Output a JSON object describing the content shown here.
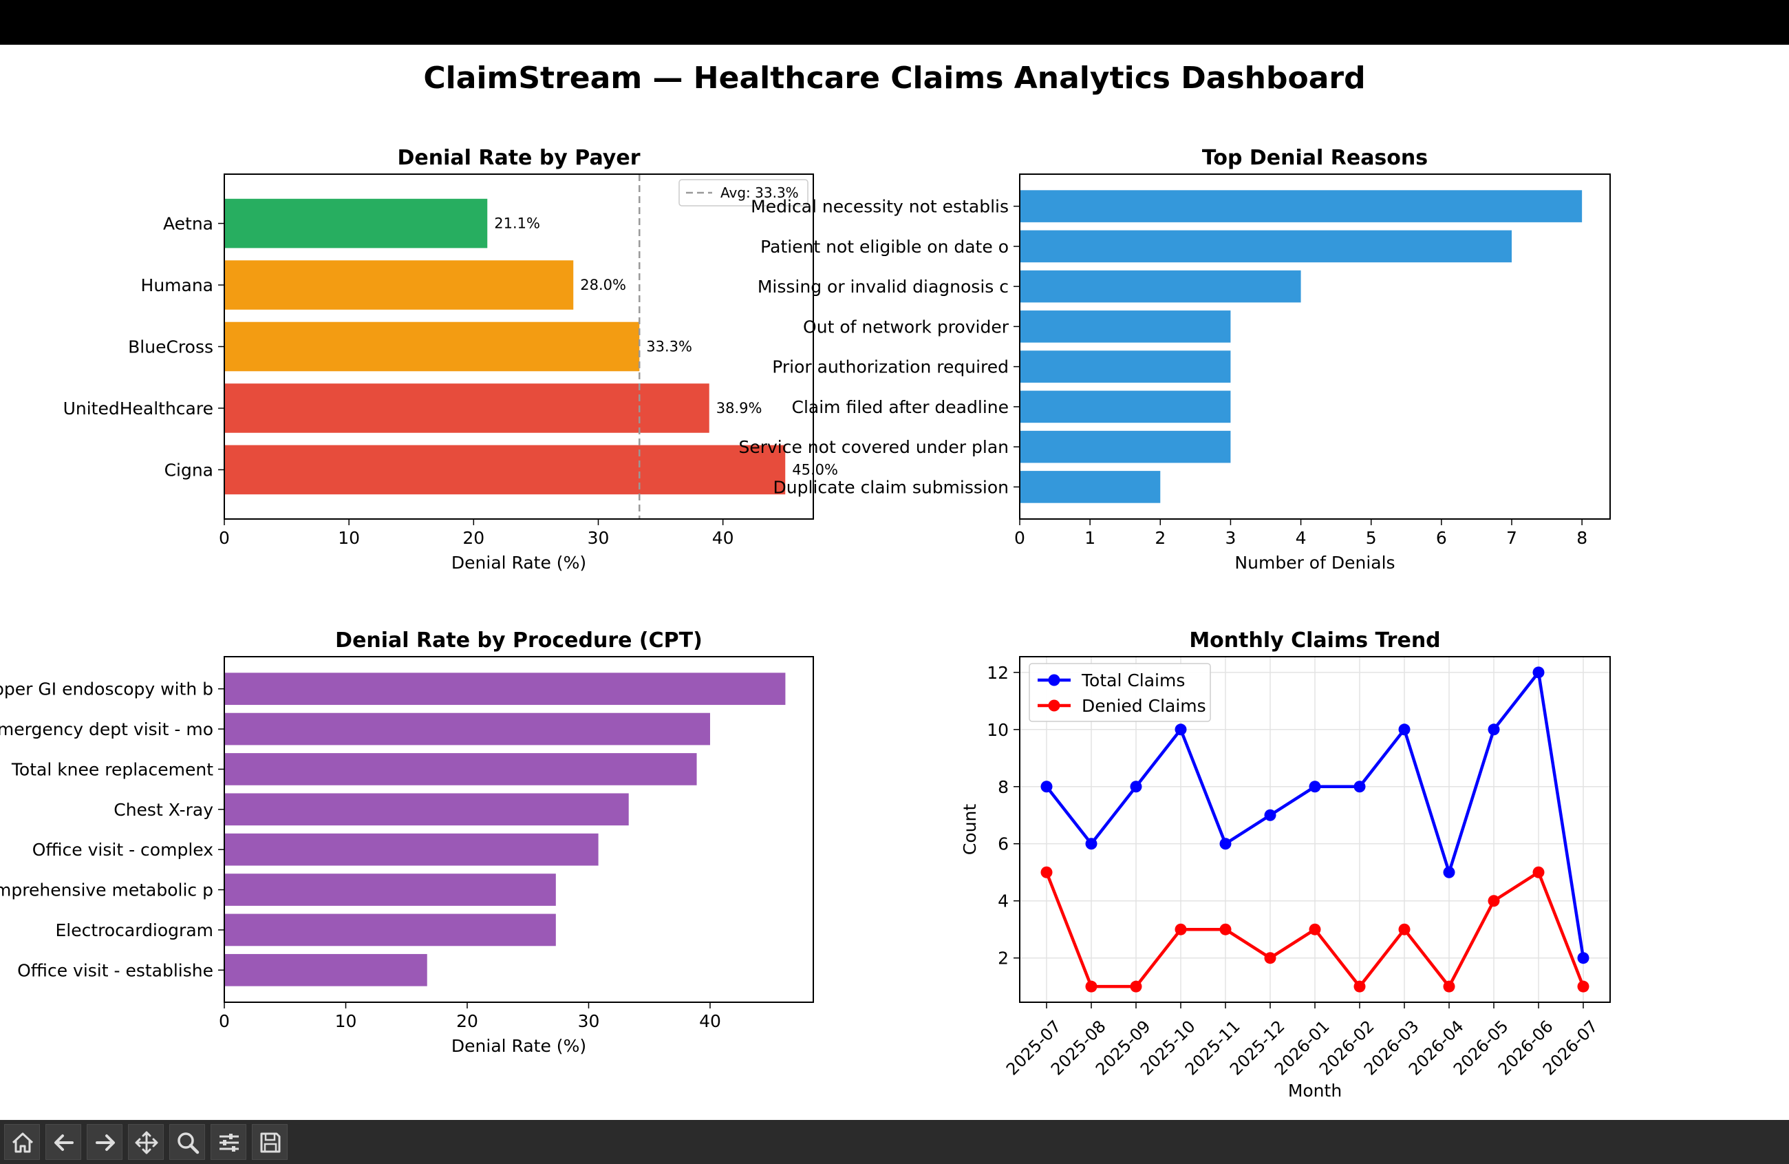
{
  "suptitle": "ClaimStream — Healthcare Claims Analytics Dashboard",
  "chart_data": [
    {
      "type": "bar",
      "orientation": "horizontal",
      "title": "Denial Rate by Payer",
      "xlabel": "Denial Rate (%)",
      "ylabel": "",
      "categories": [
        "Aetna",
        "Humana",
        "BlueCross",
        "UnitedHealthcare",
        "Cigna"
      ],
      "values": [
        21.1,
        28.0,
        33.3,
        38.9,
        45.0
      ],
      "value_labels": [
        "21.1%",
        "28.0%",
        "33.3%",
        "38.9%",
        "45.0%"
      ],
      "colors": [
        "#27ae60",
        "#f39c12",
        "#f39c12",
        "#e74c3c",
        "#e74c3c"
      ],
      "xlim": [
        0,
        47.25
      ],
      "xticks": [
        0,
        10,
        20,
        30,
        40
      ],
      "reference_line": {
        "value": 33.3,
        "label": "Avg: 33.3%",
        "color": "#999999"
      },
      "legend": "top-right"
    },
    {
      "type": "bar",
      "orientation": "horizontal",
      "title": "Top Denial Reasons",
      "xlabel": "Number of Denials",
      "ylabel": "",
      "categories": [
        "Medical necessity not establis",
        "Patient not eligible on date o",
        "Missing or invalid diagnosis c",
        "Out of network provider",
        "Prior authorization required",
        "Claim filed after deadline",
        "Service not covered under plan",
        "Duplicate claim submission"
      ],
      "values": [
        8,
        7,
        4,
        3,
        3,
        3,
        3,
        2
      ],
      "color": "#3498db",
      "xlim": [
        0,
        8.4
      ],
      "xticks": [
        0,
        1,
        2,
        3,
        4,
        5,
        6,
        7,
        8
      ]
    },
    {
      "type": "bar",
      "orientation": "horizontal",
      "title": "Denial Rate by Procedure (CPT)",
      "xlabel": "Denial Rate (%)",
      "ylabel": "",
      "categories": [
        "Upper GI endoscopy with b",
        "Emergency dept visit - mo",
        "Total knee replacement",
        "Chest X-ray",
        "Office visit - complex",
        "Comprehensive metabolic p",
        "Electrocardiogram",
        "Office visit - establishe"
      ],
      "values": [
        46.2,
        40.0,
        38.9,
        33.3,
        30.8,
        27.3,
        27.3,
        16.7
      ],
      "color": "#9b59b6",
      "xlim": [
        0,
        48.5
      ],
      "xticks": [
        0,
        10,
        20,
        30,
        40
      ]
    },
    {
      "type": "line",
      "title": "Monthly Claims Trend",
      "xlabel": "Month",
      "ylabel": "Count",
      "x": [
        "2025-07",
        "2025-08",
        "2025-09",
        "2025-10",
        "2025-11",
        "2025-12",
        "2026-01",
        "2026-02",
        "2026-03",
        "2026-04",
        "2026-05",
        "2026-06",
        "2026-07"
      ],
      "series": [
        {
          "name": "Total Claims",
          "color": "#0000ff",
          "values": [
            8,
            6,
            8,
            10,
            6,
            7,
            8,
            8,
            10,
            5,
            10,
            12,
            2
          ]
        },
        {
          "name": "Denied Claims",
          "color": "#ff0000",
          "values": [
            5,
            1,
            1,
            3,
            3,
            2,
            3,
            1,
            3,
            1,
            4,
            5,
            1
          ]
        }
      ],
      "ylim": [
        0.45,
        12.55
      ],
      "yticks": [
        2,
        4,
        6,
        8,
        10,
        12
      ],
      "grid": true,
      "legend": "top-left"
    }
  ],
  "toolbar": {
    "buttons": [
      {
        "name": "home-button",
        "icon": "home-icon"
      },
      {
        "name": "back-button",
        "icon": "arrow-left-icon"
      },
      {
        "name": "forward-button",
        "icon": "arrow-right-icon"
      },
      {
        "name": "pan-button",
        "icon": "move-icon"
      },
      {
        "name": "zoom-button",
        "icon": "magnifier-icon"
      },
      {
        "name": "configure-subplots-button",
        "icon": "sliders-icon"
      },
      {
        "name": "save-button",
        "icon": "save-icon"
      }
    ]
  }
}
